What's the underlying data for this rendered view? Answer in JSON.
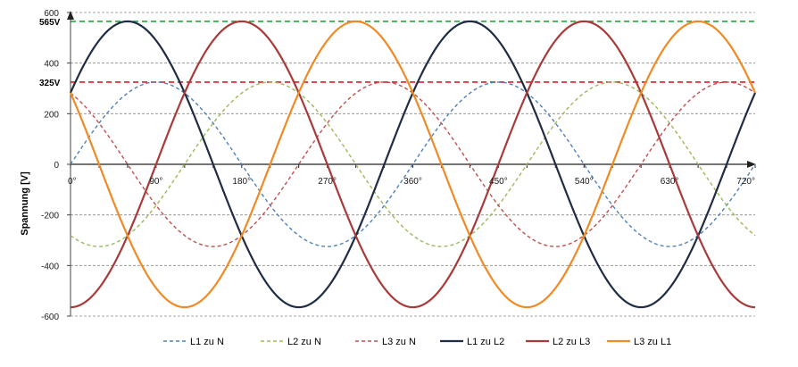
{
  "chart_data": {
    "type": "line",
    "ylabel": "Spannung [V]",
    "xlabel": "",
    "xlim": [
      0,
      720
    ],
    "ylim": [
      -600,
      600
    ],
    "grid": "horizontal dashed",
    "legend_position": "bottom",
    "x_ticks": [
      0,
      90,
      180,
      270,
      360,
      450,
      540,
      630,
      720
    ],
    "x_tick_labels": [
      "0°",
      "90°",
      "180°",
      "270°",
      "360°",
      "450°",
      "540°",
      "630°",
      "720°"
    ],
    "y_ticks": [
      -600,
      -400,
      -200,
      0,
      200,
      400,
      600
    ],
    "y_tick_labels": [
      "-600",
      "-400",
      "-200",
      "0",
      "200",
      "400",
      "600"
    ],
    "reference_lines": [
      {
        "value": 565,
        "label": "565V",
        "color": "#1faa3c"
      },
      {
        "value": 325,
        "label": "325V",
        "color": "#d41f2a"
      }
    ],
    "series": [
      {
        "name": "L1 zu N",
        "amplitude": 325,
        "phase_deg": 0,
        "color": "#4f81bd",
        "style": "dashed"
      },
      {
        "name": "L2 zu N",
        "amplitude": 325,
        "phase_deg": -120,
        "color": "#9bbb59",
        "style": "dashed"
      },
      {
        "name": "L3 zu N",
        "amplitude": 325,
        "phase_deg": 120,
        "color": "#c0504d",
        "style": "dashed"
      },
      {
        "name": "L1 zu L2",
        "amplitude": 565,
        "phase_deg": 30,
        "color": "#1f2d44",
        "style": "solid"
      },
      {
        "name": "L2 zu L3",
        "amplitude": 565,
        "phase_deg": -90,
        "color": "#a83a3a",
        "style": "solid"
      },
      {
        "name": "L3 zu L1",
        "amplitude": 565,
        "phase_deg": 150,
        "color": "#f08a24",
        "style": "solid"
      }
    ]
  }
}
